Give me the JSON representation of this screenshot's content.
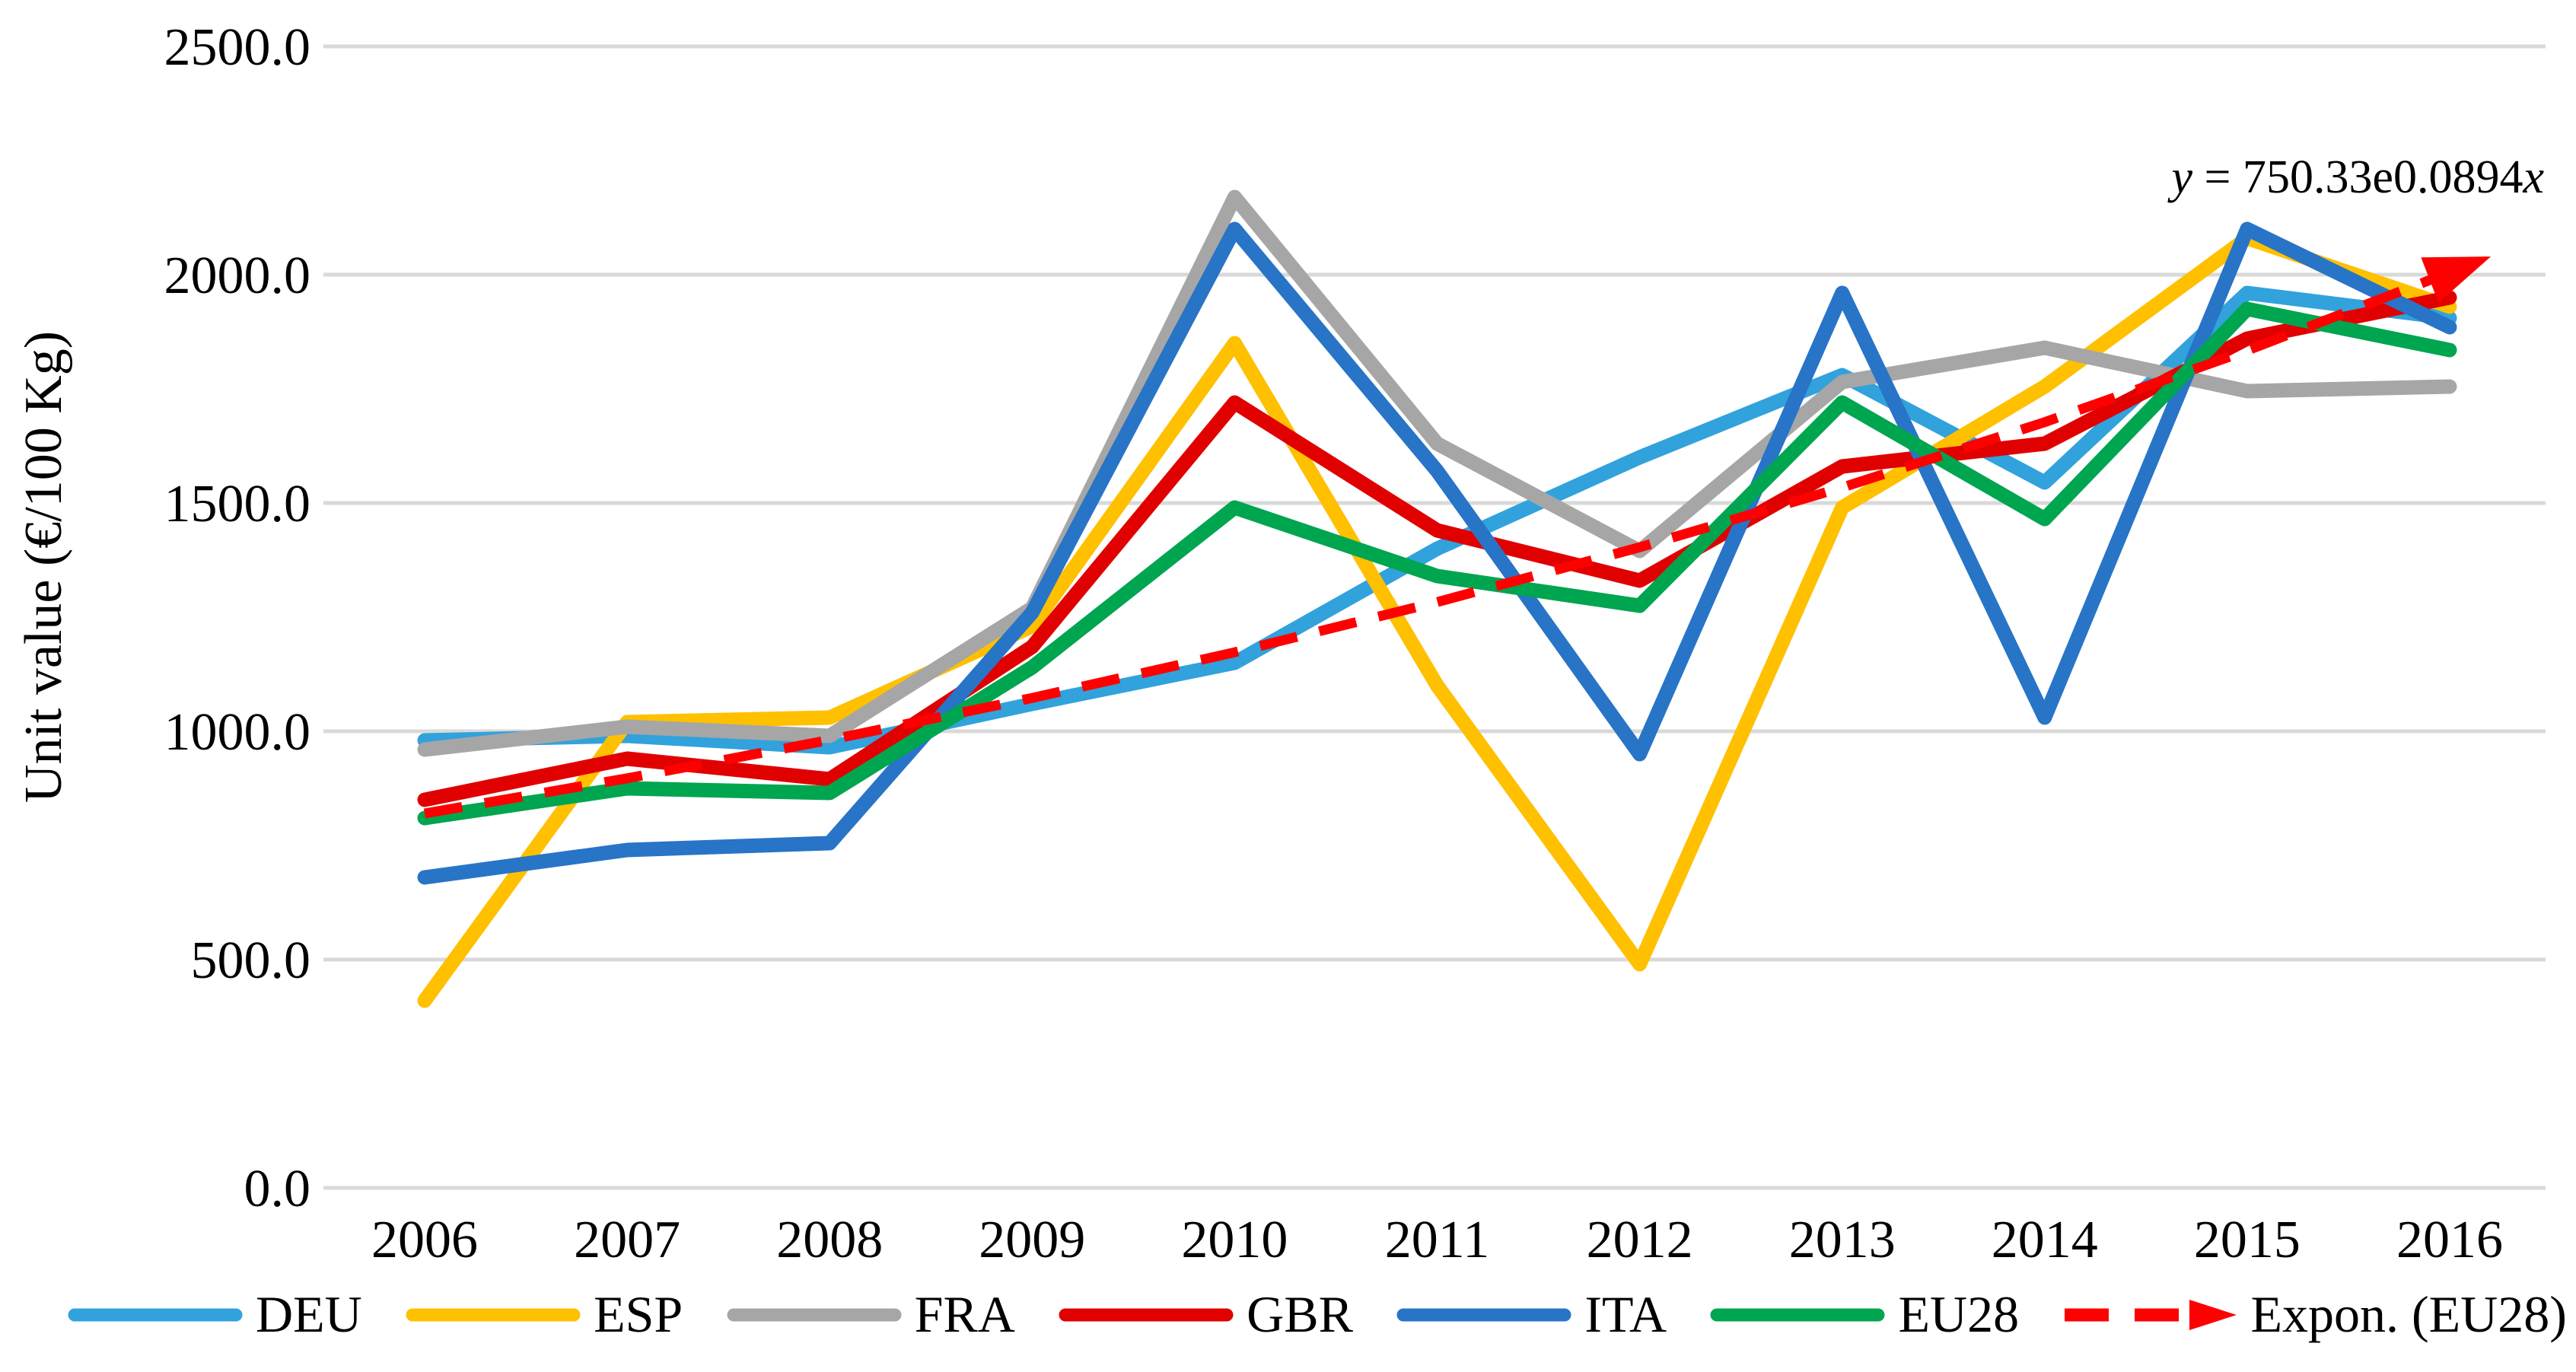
{
  "chart_data": {
    "type": "line",
    "title": "",
    "ylabel": "Unit value (€/100 Kg)",
    "xlabel": "",
    "x_labels": [
      "2006",
      "2007",
      "2008",
      "2009",
      "2010",
      "2011",
      "2012",
      "2013",
      "2014",
      "2015",
      "2016"
    ],
    "y_axis": {
      "min": 0,
      "max": 2500,
      "tick_step": 500,
      "tick_labels": [
        "2500.0",
        "2000.0",
        "1500.0",
        "1000.0",
        "500.0",
        "0.0"
      ]
    },
    "grid": true,
    "legend_position": "bottom",
    "series": [
      {
        "name": "DEU",
        "color": "#31A2DC",
        "values": [
          980,
          990,
          965,
          1060,
          1150,
          1400,
          1600,
          1780,
          1545,
          1960,
          1905
        ]
      },
      {
        "name": "ESP",
        "color": "#FFC000",
        "values": [
          410,
          1020,
          1030,
          1230,
          1850,
          1100,
          490,
          1490,
          1755,
          2080,
          1930
        ]
      },
      {
        "name": "FRA",
        "color": "#A6A6A6",
        "values": [
          960,
          1010,
          990,
          1270,
          2170,
          1630,
          1395,
          1765,
          1840,
          1745,
          1755
        ]
      },
      {
        "name": "GBR",
        "color": "#E00000",
        "values": [
          850,
          940,
          895,
          1185,
          1720,
          1440,
          1330,
          1580,
          1630,
          1860,
          1950
        ]
      },
      {
        "name": "ITA",
        "color": "#2874C7",
        "values": [
          680,
          740,
          755,
          1260,
          2100,
          1570,
          950,
          1960,
          1030,
          2100,
          1885
        ]
      },
      {
        "name": "EU28",
        "color": "#00A550",
        "values": [
          810,
          875,
          865,
          1140,
          1490,
          1340,
          1275,
          1720,
          1465,
          1925,
          1835
        ]
      }
    ],
    "trendline": {
      "name": "Expon. (EU28)",
      "color": "#FF0000",
      "style": "dashed-arrow",
      "values": [
        820,
        897,
        981,
        1073,
        1173,
        1283,
        1403,
        1534,
        1677,
        1834,
        2005
      ]
    },
    "annotation": {
      "lhs": "y",
      "mid": " = 750.33e0.0894",
      "rhs": "x"
    }
  },
  "colors": {
    "gridline": "#D9D9D9",
    "background": "#FFFFFF",
    "text": "#000000"
  }
}
